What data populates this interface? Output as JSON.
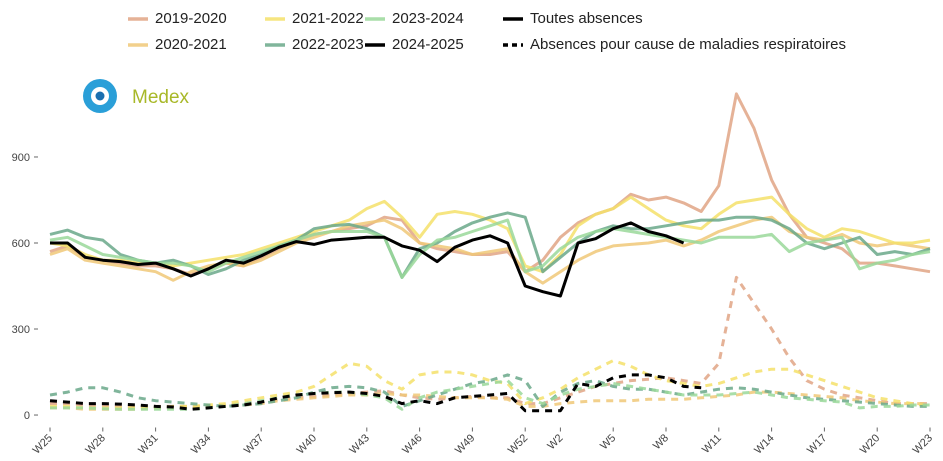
{
  "logo_text": "Medex",
  "chart_data": {
    "type": "line",
    "categories": [
      "W25",
      null,
      null,
      "W28",
      null,
      null,
      "W31",
      null,
      null,
      "W34",
      null,
      null,
      "W37",
      null,
      null,
      "W40",
      null,
      null,
      "W43",
      null,
      null,
      "W46",
      null,
      null,
      "W49",
      null,
      null,
      "W52",
      null,
      "W2",
      null,
      null,
      "W5",
      null,
      null,
      "W8",
      null,
      null,
      "W11",
      null,
      null,
      "W14",
      null,
      null,
      "W17",
      null,
      null,
      "W20",
      null,
      null,
      "W23"
    ],
    "ylim": [
      -40,
      1150
    ],
    "yticks": [
      0,
      300,
      600,
      900
    ],
    "line_styles": [
      "Toutes absences",
      "Absences pour cause de maladies respiratoires"
    ],
    "series": [
      {
        "name": "2019-2020",
        "color": "#e0a585",
        "values": [
          570,
          590,
          550,
          540,
          530,
          520,
          520,
          510,
          490,
          510,
          530,
          520,
          550,
          580,
          610,
          630,
          640,
          650,
          660,
          690,
          680,
          600,
          580,
          570,
          560,
          560,
          570,
          500,
          540,
          620,
          670,
          700,
          720,
          770,
          750,
          760,
          740,
          710,
          800,
          1120,
          1000,
          820,
          700,
          620,
          600,
          580,
          530,
          530,
          520,
          510,
          500
        ],
        "respiratory": [
          40,
          40,
          35,
          35,
          30,
          30,
          30,
          30,
          30,
          30,
          35,
          40,
          45,
          55,
          60,
          65,
          70,
          75,
          80,
          85,
          70,
          60,
          55,
          60,
          65,
          60,
          60,
          40,
          40,
          60,
          80,
          100,
          110,
          120,
          125,
          130,
          120,
          110,
          180,
          480,
          390,
          300,
          200,
          120,
          90,
          70,
          60,
          50,
          40,
          40,
          40
        ]
      },
      {
        "name": "2020-2021",
        "color": "#f0c878",
        "values": [
          560,
          580,
          540,
          530,
          520,
          510,
          500,
          470,
          500,
          520,
          530,
          520,
          540,
          570,
          600,
          620,
          640,
          660,
          670,
          680,
          650,
          600,
          590,
          580,
          560,
          570,
          580,
          500,
          460,
          500,
          540,
          570,
          590,
          595,
          600,
          610,
          590,
          610,
          640,
          660,
          680,
          690,
          640,
          620,
          610,
          630,
          600,
          590,
          600,
          590,
          580
        ],
        "respiratory": [
          25,
          25,
          20,
          20,
          20,
          20,
          25,
          25,
          25,
          30,
          30,
          35,
          40,
          50,
          55,
          60,
          65,
          70,
          70,
          75,
          70,
          70,
          65,
          60,
          60,
          60,
          55,
          30,
          30,
          40,
          45,
          50,
          50,
          50,
          55,
          55,
          55,
          60,
          65,
          70,
          80,
          80,
          75,
          70,
          65,
          60,
          50,
          45,
          40,
          40,
          40
        ]
      },
      {
        "name": "2021-2022",
        "color": "#f5e06a",
        "values": [
          600,
          590,
          560,
          540,
          540,
          530,
          530,
          520,
          530,
          540,
          550,
          560,
          580,
          600,
          620,
          640,
          660,
          680,
          720,
          745,
          690,
          620,
          700,
          710,
          700,
          680,
          650,
          520,
          500,
          560,
          660,
          700,
          720,
          760,
          720,
          680,
          660,
          650,
          700,
          740,
          750,
          760,
          700,
          650,
          620,
          650,
          640,
          620,
          600,
          600,
          610
        ],
        "respiratory": [
          30,
          30,
          25,
          25,
          25,
          25,
          25,
          30,
          30,
          35,
          40,
          50,
          60,
          70,
          80,
          100,
          140,
          180,
          170,
          120,
          90,
          140,
          150,
          150,
          140,
          120,
          110,
          40,
          60,
          90,
          130,
          160,
          190,
          170,
          140,
          120,
          110,
          100,
          110,
          130,
          150,
          160,
          160,
          140,
          120,
          100,
          80,
          60,
          50,
          40,
          30
        ]
      },
      {
        "name": "2022-2023",
        "color": "#6aa88a",
        "values": [
          630,
          645,
          620,
          610,
          560,
          540,
          530,
          540,
          520,
          490,
          510,
          540,
          560,
          590,
          610,
          650,
          660,
          665,
          650,
          620,
          480,
          580,
          600,
          640,
          670,
          690,
          705,
          690,
          500,
          550,
          600,
          640,
          660,
          650,
          650,
          660,
          670,
          680,
          680,
          690,
          690,
          680,
          650,
          600,
          580,
          600,
          620,
          560,
          570,
          560,
          580
        ],
        "respiratory": [
          70,
          80,
          95,
          95,
          80,
          60,
          50,
          45,
          40,
          35,
          30,
          35,
          40,
          50,
          60,
          80,
          95,
          100,
          95,
          80,
          30,
          50,
          70,
          90,
          110,
          120,
          140,
          120,
          30,
          80,
          110,
          120,
          100,
          90,
          90,
          80,
          70,
          80,
          90,
          95,
          90,
          80,
          70,
          60,
          55,
          50,
          45,
          40,
          35,
          30,
          30
        ]
      },
      {
        "name": "2023-2024",
        "color": "#9ad89a",
        "values": [
          610,
          620,
          590,
          560,
          550,
          540,
          530,
          530,
          520,
          500,
          530,
          550,
          570,
          590,
          610,
          630,
          640,
          640,
          640,
          620,
          480,
          560,
          610,
          620,
          640,
          660,
          680,
          500,
          520,
          580,
          620,
          640,
          650,
          640,
          630,
          620,
          610,
          600,
          620,
          620,
          620,
          630,
          570,
          600,
          610,
          620,
          510,
          530,
          540,
          560,
          570
        ],
        "respiratory": [
          25,
          25,
          25,
          22,
          20,
          20,
          20,
          20,
          20,
          25,
          30,
          40,
          50,
          60,
          70,
          75,
          80,
          80,
          70,
          60,
          20,
          60,
          80,
          90,
          100,
          110,
          120,
          60,
          40,
          70,
          90,
          100,
          110,
          100,
          90,
          80,
          70,
          70,
          70,
          75,
          80,
          70,
          60,
          55,
          50,
          45,
          25,
          30,
          30,
          35,
          35
        ]
      },
      {
        "name": "2024-2025",
        "color": "#000000",
        "values": [
          600,
          600,
          550,
          540,
          535,
          525,
          530,
          510,
          485,
          510,
          540,
          530,
          555,
          585,
          605,
          595,
          610,
          615,
          620,
          620,
          590,
          575,
          535,
          585,
          610,
          625,
          600,
          450,
          430,
          415,
          600,
          615,
          650,
          670,
          640,
          625,
          600,
          null,
          null,
          null,
          null,
          null,
          null,
          null,
          null,
          null,
          null,
          null,
          null,
          null,
          null
        ],
        "respiratory": [
          50,
          45,
          40,
          40,
          38,
          35,
          30,
          28,
          20,
          25,
          30,
          35,
          45,
          60,
          70,
          75,
          78,
          80,
          75,
          65,
          40,
          50,
          40,
          60,
          65,
          70,
          75,
          15,
          15,
          15,
          110,
          100,
          130,
          140,
          140,
          130,
          100,
          95,
          null,
          null,
          null,
          null,
          null,
          null,
          null,
          null,
          null,
          null,
          null,
          null,
          null
        ]
      }
    ]
  }
}
